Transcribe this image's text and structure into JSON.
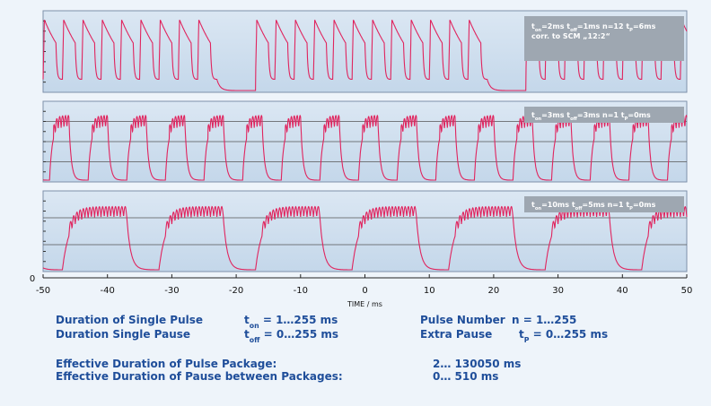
{
  "chart_data": {
    "type": "waveform",
    "xlabel": "TIME / ms",
    "xlim": [
      -50,
      50
    ],
    "xticks": [
      -50,
      -40,
      -30,
      -20,
      -10,
      0,
      10,
      20,
      30,
      40,
      50
    ],
    "ylabel_zero": "0",
    "color": "#e0245e",
    "panels": [
      {
        "annotation": [
          [
            {
              "text": "t"
            },
            {
              "sub": "on"
            },
            {
              "text": "=2ms t"
            },
            {
              "sub": "off"
            },
            {
              "text": "=1ms n=12 t"
            },
            {
              "sub": "P"
            },
            {
              "text": "=6ms"
            }
          ],
          [
            {
              "text": "corr. to SCM „12:2“"
            }
          ]
        ]
      },
      {
        "annotation": [
          [
            {
              "text": "t"
            },
            {
              "sub": "on"
            },
            {
              "text": "=3ms t"
            },
            {
              "sub": "off"
            },
            {
              "text": "=3ms n=1 t"
            },
            {
              "sub": "P"
            },
            {
              "text": "=0ms"
            }
          ]
        ]
      },
      {
        "annotation": [
          [
            {
              "text": "t"
            },
            {
              "sub": "on"
            },
            {
              "text": "=10ms t"
            },
            {
              "sub": "off"
            },
            {
              "text": "=5ms n=1 t"
            },
            {
              "sub": "P"
            },
            {
              "text": "=0ms"
            }
          ]
        ]
      }
    ],
    "notes": [
      [
        [
          {
            "text": "Duration of Single Pulse"
          }
        ],
        [
          {
            "text": "t"
          },
          {
            "sub": "on"
          },
          {
            "text": " = 1…255  ms"
          }
        ],
        [
          {
            "text": "Pulse Number"
          }
        ],
        [
          {
            "text": "n = 1…255"
          }
        ]
      ],
      [
        [
          {
            "text": "Duration Single Pause"
          }
        ],
        [
          {
            "text": "t"
          },
          {
            "sub": "off"
          },
          {
            "text": " = 0…255  ms"
          }
        ],
        [
          {
            "text": "Extra Pause"
          }
        ],
        [
          {
            "text": "t"
          },
          {
            "sub": "P"
          },
          {
            "text": " = 0…255  ms"
          }
        ]
      ],
      [
        [
          {
            "text": "Effective Duration of Pulse Package:"
          }
        ],
        [
          {
            "text": "2… 130050  ms"
          }
        ]
      ],
      [
        [
          {
            "text": "Effective Duration of Pause between Packages:"
          }
        ],
        [
          {
            "text": "0… 510  ms"
          }
        ]
      ]
    ]
  }
}
